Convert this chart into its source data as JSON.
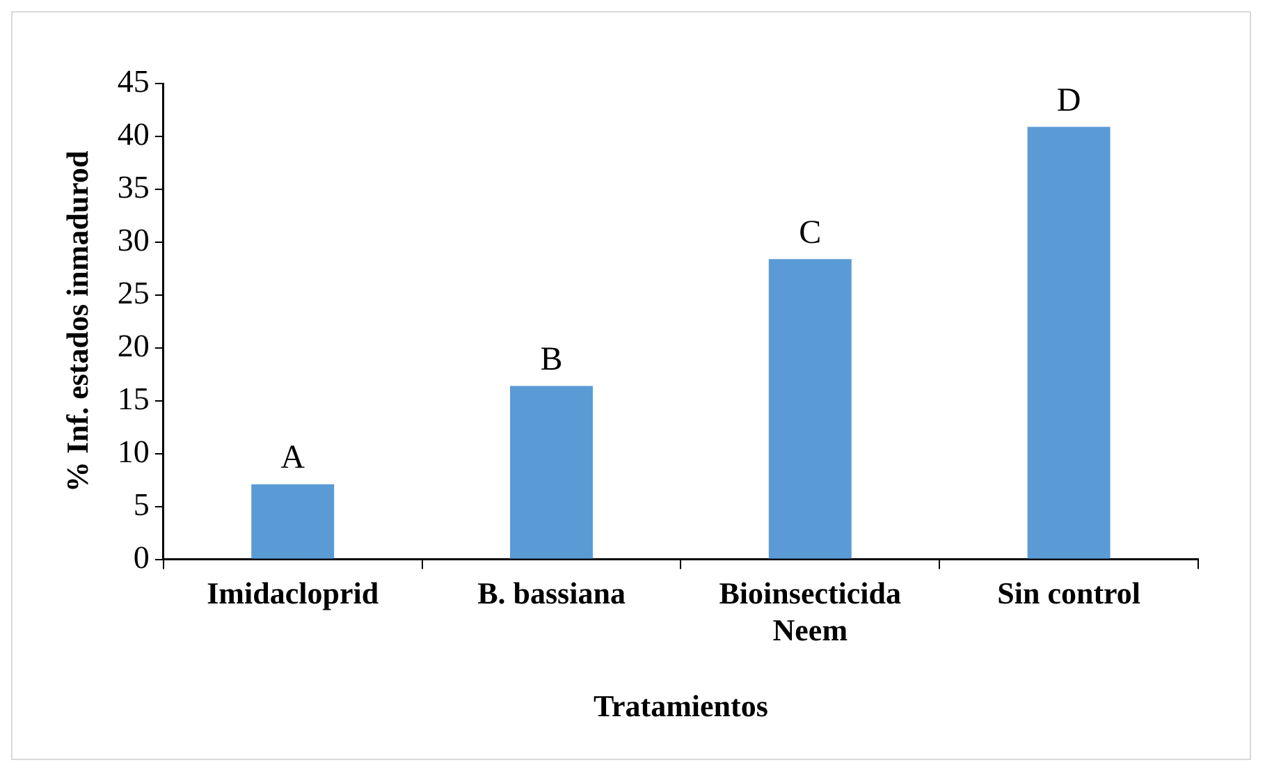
{
  "chart_data": {
    "type": "bar",
    "xlabel": "Tratamientos",
    "ylabel": "% Inf. estados inmadurod",
    "categories": [
      "Imidacloprid",
      "B. bassiana",
      "Bioinsecticida Neem",
      "Sin control"
    ],
    "values": [
      7.1,
      16.4,
      28.4,
      40.9
    ],
    "color": "#5b9bd5",
    "ylim": [
      0,
      45
    ],
    "yticks": [
      0,
      5,
      10,
      15,
      20,
      25,
      30,
      35,
      40,
      45
    ],
    "grid": false,
    "legend": false,
    "annotations": [
      {
        "text": "A",
        "x": "Imidacloprid",
        "y": 7.1
      },
      {
        "text": "B",
        "x": "B. bassiana",
        "y": 16.4
      },
      {
        "text": "C",
        "x": "Bioinsecticida Neem",
        "y": 28.4
      },
      {
        "text": "D",
        "x": "Sin control",
        "y": 40.9
      }
    ]
  }
}
